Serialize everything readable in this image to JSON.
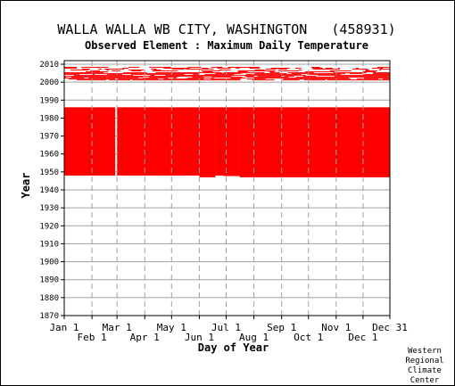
{
  "page": {
    "title": "WALLA WALLA WB CITY, WASHINGTON   (458931)",
    "subtitle": "Observed Element : Maximum Daily Temperature",
    "credit": [
      "Western",
      "Regional",
      "Climate",
      "Center"
    ]
  },
  "chart_data": {
    "type": "heatmap",
    "title": "WALLA WALLA WB CITY, WASHINGTON   (458931)",
    "subtitle": "Observed Element : Maximum Daily Temperature",
    "xlabel": "Day of Year",
    "ylabel": "Year",
    "xlim": [
      1,
      365
    ],
    "ylim": [
      1870,
      2012
    ],
    "y_ticks": [
      1870,
      1880,
      1890,
      1900,
      1910,
      1920,
      1930,
      1940,
      1950,
      1960,
      1970,
      1980,
      1990,
      2000,
      2010
    ],
    "x_ticks_upper": [
      {
        "label": "Jan 1",
        "day": 1
      },
      {
        "label": "Mar 1",
        "day": 60
      },
      {
        "label": "May 1",
        "day": 121
      },
      {
        "label": "Jul 1",
        "day": 182
      },
      {
        "label": "Sep 1",
        "day": 244
      },
      {
        "label": "Nov 1",
        "day": 305
      },
      {
        "label": "Dec 31",
        "day": 365
      }
    ],
    "x_ticks_lower": [
      {
        "label": "Feb 1",
        "day": 32
      },
      {
        "label": "Apr 1",
        "day": 91
      },
      {
        "label": "Jun 1",
        "day": 152
      },
      {
        "label": "Aug 1",
        "day": 213
      },
      {
        "label": "Oct 1",
        "day": 274
      },
      {
        "label": "Dec 1",
        "day": 335
      }
    ],
    "grid": true,
    "data_color": "#ff0000",
    "grid_color": "#a0a0a0",
    "blocks": [
      {
        "day_start": 1,
        "day_end": 58,
        "year_start": 1948,
        "year_end": 1986
      },
      {
        "day_start": 60,
        "day_end": 152,
        "year_start": 1948,
        "year_end": 1986
      },
      {
        "day_start": 152,
        "day_end": 170,
        "year_start": 1947,
        "year_end": 1986
      },
      {
        "day_start": 170,
        "day_end": 179,
        "year_start": 1948,
        "year_end": 1986
      },
      {
        "day_start": 179,
        "day_end": 197,
        "year_start": 1947.7,
        "year_end": 1986
      },
      {
        "day_start": 197,
        "day_end": 365,
        "year_start": 1947,
        "year_end": 1986
      }
    ],
    "recent_band": {
      "year_start": 2001,
      "year_end": 2008,
      "day_start": 1,
      "day_end": 365
    }
  }
}
